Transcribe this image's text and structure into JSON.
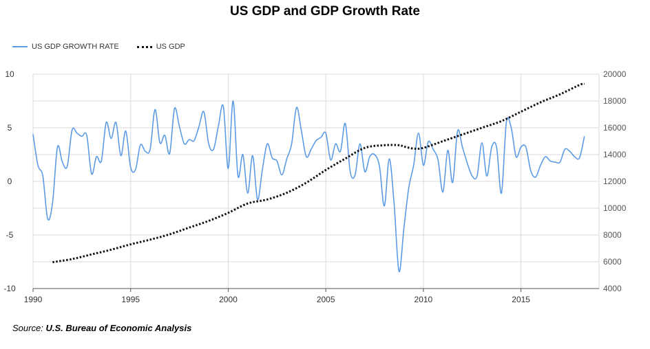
{
  "chart_data": {
    "type": "line",
    "title": "US GDP and GDP Growth Rate",
    "source_prefix": "Source:",
    "source_name": "U.S. Bureau of Economic Analysis",
    "xlim": [
      1990,
      2019
    ],
    "x_ticks": [
      "1990",
      "1995",
      "2000",
      "2005",
      "2010",
      "2015"
    ],
    "y_left": {
      "ylim": [
        -10,
        10
      ],
      "ticks": [
        "10",
        "5",
        "0",
        "-5",
        "-10"
      ]
    },
    "y_right": {
      "ylim": [
        4000,
        20000
      ],
      "ticks": [
        "20000",
        "18000",
        "16000",
        "14000",
        "12000",
        "10000",
        "8000",
        "6000",
        "4000"
      ]
    },
    "grid": true,
    "legend_position": "top-left",
    "series": [
      {
        "name": "US GDP GROWTH RATE",
        "axis": "left",
        "color": "#5b9be6",
        "style": "solid",
        "x": [
          1990.0,
          1990.25,
          1990.5,
          1990.75,
          1991.0,
          1991.25,
          1991.5,
          1991.75,
          1992.0,
          1992.25,
          1992.5,
          1992.75,
          1993.0,
          1993.25,
          1993.5,
          1993.75,
          1994.0,
          1994.25,
          1994.5,
          1994.75,
          1995.0,
          1995.25,
          1995.5,
          1995.75,
          1996.0,
          1996.25,
          1996.5,
          1996.75,
          1997.0,
          1997.25,
          1997.5,
          1997.75,
          1998.0,
          1998.25,
          1998.5,
          1998.75,
          1999.0,
          1999.25,
          1999.5,
          1999.75,
          2000.0,
          2000.25,
          2000.5,
          2000.75,
          2001.0,
          2001.25,
          2001.5,
          2001.75,
          2002.0,
          2002.25,
          2002.5,
          2002.75,
          2003.0,
          2003.25,
          2003.5,
          2003.75,
          2004.0,
          2004.25,
          2004.5,
          2004.75,
          2005.0,
          2005.25,
          2005.5,
          2005.75,
          2006.0,
          2006.25,
          2006.5,
          2006.75,
          2007.0,
          2007.25,
          2007.5,
          2007.75,
          2008.0,
          2008.25,
          2008.5,
          2008.75,
          2009.0,
          2009.25,
          2009.5,
          2009.75,
          2010.0,
          2010.25,
          2010.5,
          2010.75,
          2011.0,
          2011.25,
          2011.5,
          2011.75,
          2012.0,
          2012.25,
          2012.5,
          2012.75,
          2013.0,
          2013.25,
          2013.5,
          2013.75,
          2014.0,
          2014.25,
          2014.5,
          2014.75,
          2015.0,
          2015.25,
          2015.5,
          2015.75,
          2016.0,
          2016.25,
          2016.5,
          2016.75,
          2017.0,
          2017.25,
          2017.5,
          2017.75,
          2018.0,
          2018.25
        ],
        "values": [
          4.4,
          1.5,
          0.5,
          -3.5,
          -2.0,
          3.2,
          1.8,
          1.4,
          4.8,
          4.5,
          4.2,
          4.3,
          0.7,
          2.3,
          1.9,
          5.5,
          4.0,
          5.5,
          2.4,
          4.7,
          1.3,
          1.1,
          3.4,
          2.8,
          3.0,
          6.7,
          3.6,
          4.3,
          2.6,
          6.8,
          5.1,
          3.5,
          3.9,
          3.8,
          5.1,
          6.5,
          3.5,
          3.0,
          5.2,
          7.0,
          1.2,
          7.5,
          0.5,
          2.5,
          -1.1,
          2.4,
          -1.7,
          1.1,
          3.5,
          2.2,
          1.9,
          0.6,
          2.1,
          3.5,
          6.9,
          4.7,
          2.3,
          3.0,
          3.8,
          4.1,
          4.5,
          2.0,
          3.5,
          2.8,
          5.4,
          0.9,
          0.6,
          3.5,
          0.9,
          2.3,
          2.5,
          1.4,
          -2.3,
          2.1,
          -2.1,
          -8.4,
          -4.4,
          -0.6,
          1.5,
          4.5,
          1.5,
          3.7,
          3.0,
          2.0,
          -1.0,
          2.9,
          -0.1,
          4.7,
          3.2,
          1.7,
          0.5,
          0.5,
          3.6,
          0.5,
          3.2,
          3.2,
          -1.1,
          5.5,
          5.0,
          2.3,
          3.2,
          3.2,
          1.0,
          0.4,
          1.5,
          2.3,
          1.9,
          1.8,
          1.8,
          3.0,
          2.8,
          2.3,
          2.2,
          4.2
        ]
      },
      {
        "name": "US GDP",
        "axis": "right",
        "color": "#111111",
        "style": "dotted",
        "x": [
          1991.0,
          1992.0,
          1993.0,
          1994.0,
          1995.0,
          1996.0,
          1997.0,
          1998.0,
          1999.0,
          2000.0,
          2001.0,
          2002.0,
          2003.0,
          2004.0,
          2005.0,
          2006.0,
          2007.0,
          2008.0,
          2008.75,
          2009.0,
          2009.5,
          2010.0,
          2011.0,
          2012.0,
          2013.0,
          2014.0,
          2015.0,
          2016.0,
          2017.0,
          2018.0,
          2018.25
        ],
        "values": [
          5970,
          6200,
          6550,
          6900,
          7300,
          7650,
          8050,
          8550,
          9050,
          9650,
          10350,
          10650,
          11150,
          11900,
          12850,
          13700,
          14500,
          14700,
          14700,
          14600,
          14450,
          14500,
          15000,
          15500,
          16000,
          16500,
          17200,
          17900,
          18500,
          19200,
          19300
        ]
      }
    ]
  }
}
